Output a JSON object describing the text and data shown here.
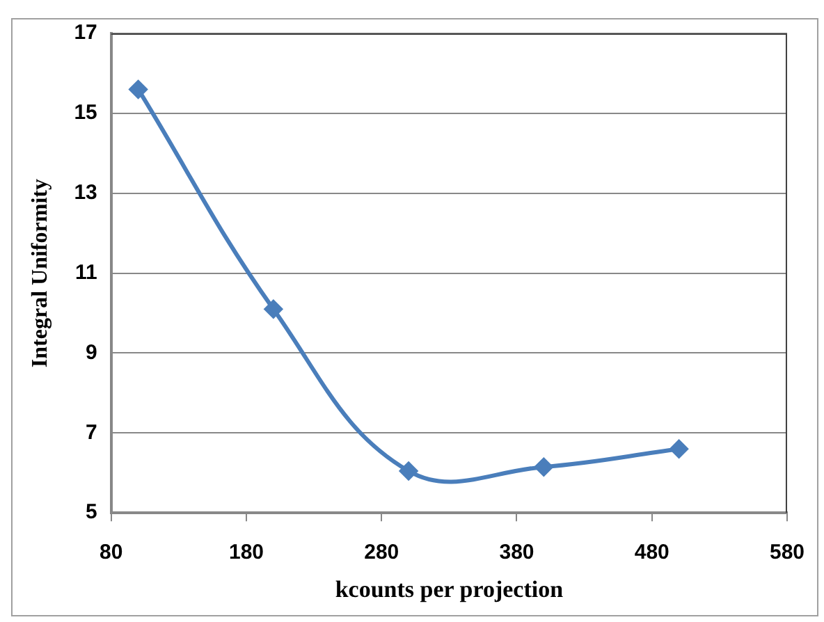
{
  "chart_data": {
    "type": "line",
    "xlabel": "kcounts per projection",
    "ylabel": "Integral Uniformity",
    "x": [
      100,
      200,
      300,
      400,
      500
    ],
    "series": [
      {
        "color": "#4a7ebb",
        "values": [
          15.6,
          10.1,
          6.05,
          6.15,
          6.6
        ]
      }
    ],
    "xlim": [
      80,
      580
    ],
    "xticks": [
      80,
      180,
      280,
      380,
      480,
      580
    ],
    "ylim": [
      5,
      17
    ],
    "yticks": [
      5,
      7,
      9,
      11,
      13,
      15,
      17
    ],
    "grid": "y",
    "legend": false,
    "marker": "diamond",
    "line_style": "solid"
  }
}
